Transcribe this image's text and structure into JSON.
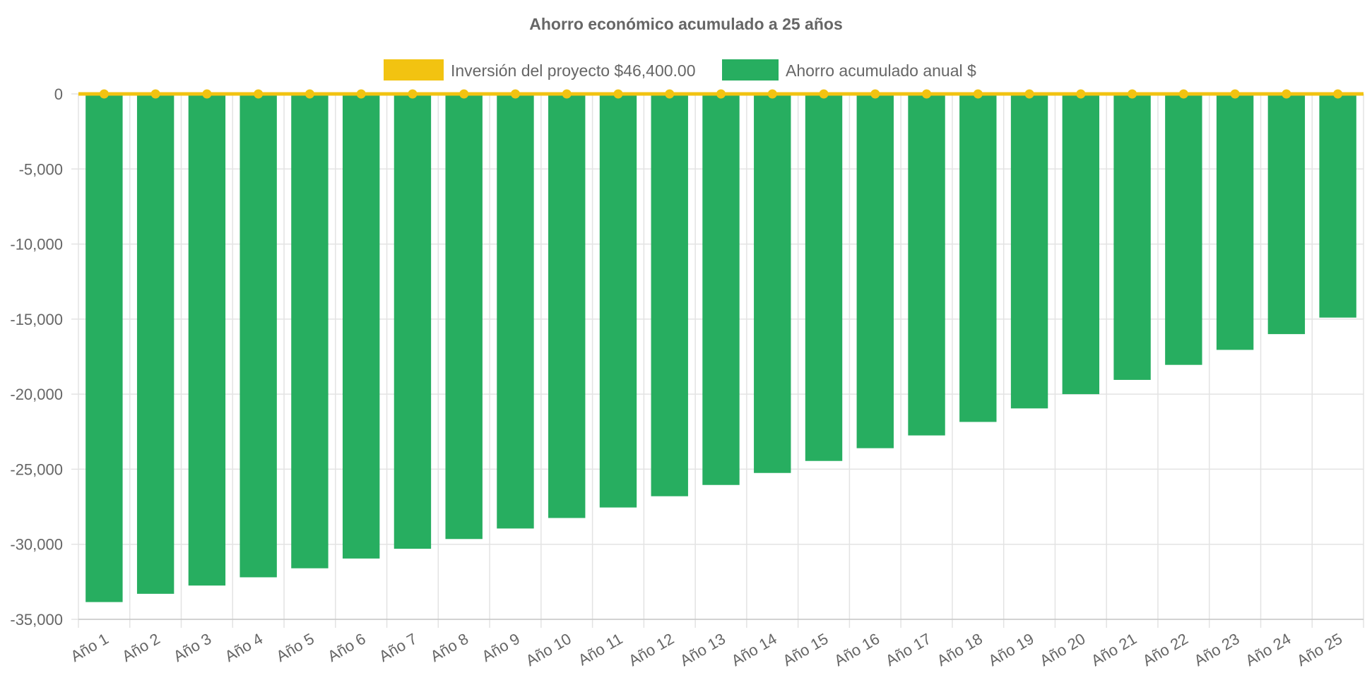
{
  "chart_data": {
    "type": "bar",
    "title": "Ahorro económico acumulado a 25 años",
    "categories": [
      "Año 1",
      "Año 2",
      "Año 3",
      "Año 4",
      "Año 5",
      "Año 6",
      "Año 7",
      "Año 8",
      "Año 9",
      "Año 10",
      "Año 11",
      "Año 12",
      "Año 13",
      "Año 14",
      "Año 15",
      "Año 16",
      "Año 17",
      "Año 18",
      "Año 19",
      "Año 20",
      "Año 21",
      "Año 22",
      "Año 23",
      "Año 24",
      "Año 25"
    ],
    "series": [
      {
        "name": "Inversión del proyecto $46,400.00",
        "kind": "line",
        "color": "#f2c311",
        "values": [
          0,
          0,
          0,
          0,
          0,
          0,
          0,
          0,
          0,
          0,
          0,
          0,
          0,
          0,
          0,
          0,
          0,
          0,
          0,
          0,
          0,
          0,
          0,
          0,
          0
        ]
      },
      {
        "name": "Ahorro acumulado anual $",
        "kind": "bar",
        "color": "#27ae60",
        "values": [
          -33850,
          -33300,
          -32750,
          -32200,
          -31600,
          -30950,
          -30300,
          -29650,
          -28950,
          -28250,
          -27550,
          -26800,
          -26050,
          -25250,
          -24450,
          -23600,
          -22750,
          -21850,
          -20950,
          -20000,
          -19050,
          -18050,
          -17050,
          -16000,
          -14900
        ]
      }
    ],
    "yticks": [
      "0",
      "-5,000",
      "-10,000",
      "-15,000",
      "-20,000",
      "-25,000",
      "-30,000",
      "-35,000"
    ],
    "ytick_values": [
      0,
      -5000,
      -10000,
      -15000,
      -20000,
      -25000,
      -30000,
      -35000
    ],
    "ylim": [
      -35000,
      0
    ],
    "xlabel": "",
    "ylabel": "",
    "legend_position": "top-center",
    "grid": true
  }
}
